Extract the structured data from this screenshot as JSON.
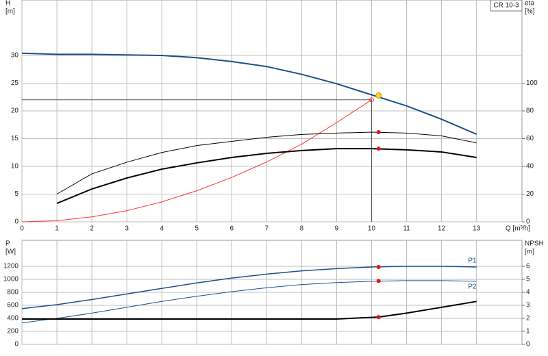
{
  "chart_data": [
    {
      "type": "line",
      "y_label": "H",
      "y_unit": "[m]",
      "y2_label": "eta",
      "y2_unit": "[%]",
      "x_label": "Q [m³/h]",
      "box_label": "CR 10-3",
      "xlim": [
        0,
        14.3
      ],
      "xticks": [
        0,
        1,
        2,
        3,
        4,
        5,
        6,
        7,
        8,
        9,
        10,
        11,
        12,
        13
      ],
      "x_tick_labels": true,
      "ylim": [
        0,
        40
      ],
      "yticks": [
        0,
        5,
        10,
        15,
        20,
        25,
        30
      ],
      "y2lim": [
        0,
        160
      ],
      "y2ticks": [
        0,
        20,
        40,
        60,
        80,
        100
      ],
      "grid": true,
      "series": [
        {
          "color": "#1a4f8a",
          "width": 2,
          "axis": "y",
          "x": [
            0,
            1,
            2,
            3,
            4,
            5,
            6,
            7,
            8,
            9,
            10,
            11,
            12,
            13
          ],
          "values": [
            30.4,
            30.2,
            30.2,
            30.1,
            30.0,
            29.6,
            28.9,
            28.0,
            26.6,
            24.9,
            22.9,
            20.9,
            18.5,
            15.8
          ]
        },
        {
          "color": "#ff3030",
          "width": 1,
          "axis": "y",
          "x": [
            0,
            1,
            2,
            3,
            4,
            5,
            6,
            7,
            8,
            9,
            10
          ],
          "values": [
            0,
            0.2,
            0.9,
            2,
            3.6,
            5.6,
            8,
            10.8,
            14,
            17.9,
            22
          ]
        },
        {
          "color": "#000000",
          "width": 1,
          "axis": "y2",
          "x": [
            1,
            2,
            3,
            4,
            5,
            6,
            7,
            8,
            9,
            10,
            11,
            12,
            13
          ],
          "values": [
            20,
            34.6,
            43,
            50,
            55,
            58,
            61,
            63,
            64,
            64.7,
            64,
            62,
            57
          ]
        },
        {
          "color": "#000000",
          "width": 2,
          "axis": "y2",
          "x": [
            1,
            2,
            3,
            4,
            5,
            6,
            7,
            8,
            9,
            10,
            11,
            12,
            13
          ],
          "values": [
            13.3,
            23.7,
            31.6,
            38,
            42.5,
            46.4,
            49.4,
            51.4,
            52.8,
            52.8,
            51.9,
            50.4,
            46.4
          ]
        }
      ],
      "crosshair": {
        "x": 10,
        "y": 22,
        "color": "#ff3030"
      },
      "markers": [
        {
          "x": 10.2,
          "y": 22.8,
          "axis": "y",
          "color": "#ffd21f"
        },
        {
          "x": 10.2,
          "y": 64.7,
          "axis": "y2",
          "color": "#ee1111"
        },
        {
          "x": 10.2,
          "y": 52.8,
          "axis": "y2",
          "color": "#ee1111"
        }
      ]
    },
    {
      "type": "line",
      "y_label": "P",
      "y_unit": "[W]",
      "y2_label": "NPSH",
      "y2_unit": "[m]",
      "xlim": [
        0,
        14.3
      ],
      "xticks": [
        0,
        1,
        2,
        3,
        4,
        5,
        6,
        7,
        8,
        9,
        10,
        11,
        12,
        13
      ],
      "x_tick_labels": false,
      "ylim": [
        0,
        1600
      ],
      "yticks": [
        0,
        200,
        400,
        600,
        800,
        1000,
        1200
      ],
      "y2lim": [
        0,
        8
      ],
      "y2ticks": [
        0,
        1,
        2,
        3,
        4,
        5,
        6
      ],
      "grid": true,
      "series": [
        {
          "name": "P1",
          "label_pos": "above",
          "color": "#1a4f8a",
          "width": 1.5,
          "axis": "y",
          "x": [
            0,
            1,
            2,
            3,
            4,
            5,
            6,
            7,
            8,
            9,
            10,
            11,
            12,
            13
          ],
          "values": [
            550,
            610,
            690,
            775,
            860,
            945,
            1020,
            1080,
            1130,
            1165,
            1190,
            1200,
            1200,
            1190
          ]
        },
        {
          "name": "P2",
          "label_pos": "below",
          "color": "#1a4f8a",
          "width": 1,
          "axis": "y",
          "x": [
            0,
            1,
            2,
            3,
            4,
            5,
            6,
            7,
            8,
            9,
            10,
            11,
            12,
            13
          ],
          "values": [
            330,
            400,
            480,
            570,
            660,
            740,
            810,
            870,
            920,
            950,
            970,
            980,
            980,
            970
          ]
        },
        {
          "color": "#000000",
          "width": 2,
          "axis": "y2",
          "x": [
            0,
            5,
            6,
            7,
            8,
            9,
            10.2,
            11,
            12,
            13
          ],
          "values": [
            1.95,
            1.95,
            1.95,
            1.95,
            1.95,
            1.95,
            2.1,
            2.4,
            2.85,
            3.3
          ]
        }
      ],
      "markers": [
        {
          "x": 10.2,
          "y": 1190,
          "axis": "y",
          "color": "#ee1111"
        },
        {
          "x": 10.2,
          "y": 975,
          "axis": "y",
          "color": "#ee1111"
        },
        {
          "x": 10.2,
          "y": 2.1,
          "axis": "y2",
          "color": "#ee1111"
        }
      ]
    }
  ]
}
